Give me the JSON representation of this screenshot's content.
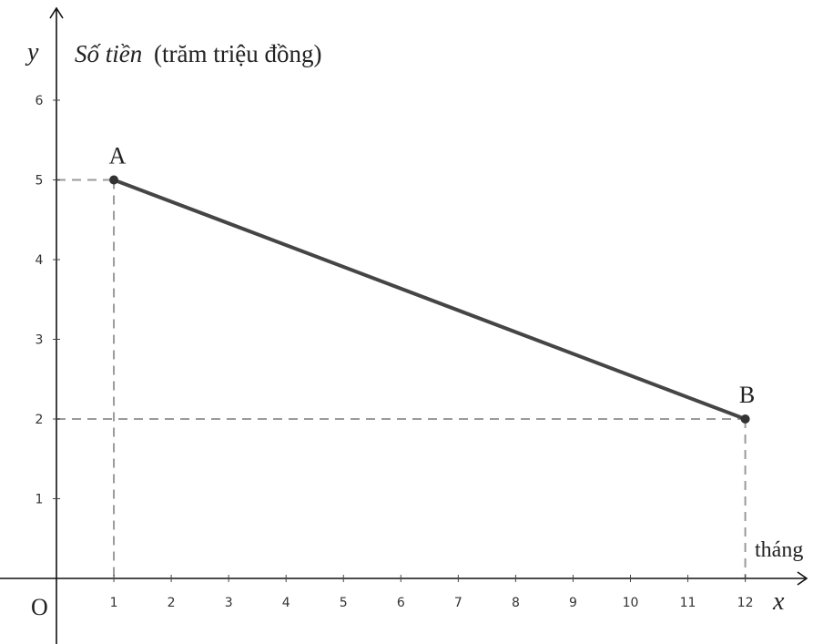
{
  "chart_data": {
    "type": "line",
    "xlabel": "x",
    "ylabel": "y",
    "x_unit": "tháng",
    "y_title_italic": "Số tiền",
    "y_title_rest": "(trăm triệu đồng)",
    "origin_label": "O",
    "xlim": [
      0,
      13
    ],
    "ylim": [
      0,
      6.8
    ],
    "x_ticks": [
      1,
      2,
      3,
      4,
      5,
      6,
      7,
      8,
      9,
      10,
      11,
      12
    ],
    "y_ticks": [
      1,
      2,
      3,
      4,
      5,
      6
    ],
    "grid": false,
    "points": [
      {
        "label": "A",
        "x": 1,
        "y": 5
      },
      {
        "label": "B",
        "x": 12,
        "y": 2
      }
    ],
    "line_color": "#454545",
    "point_color": "#333333",
    "guide_color": "#9a9a9a"
  }
}
